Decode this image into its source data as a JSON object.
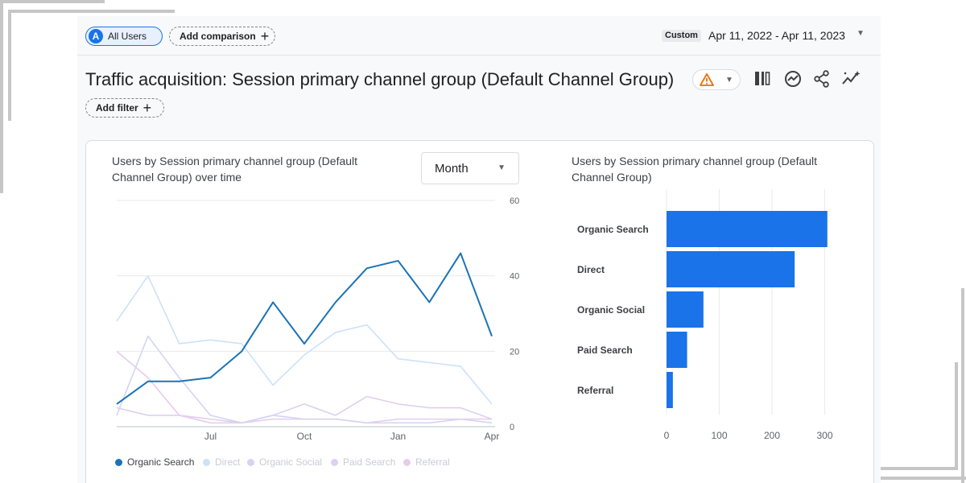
{
  "topbar": {
    "users_chip": {
      "avatar": "A",
      "label": "All Users"
    },
    "add_comparison_label": "Add comparison",
    "custom_badge": "Custom",
    "date_range": "Apr 11, 2022 - Apr 11, 2023"
  },
  "title": "Traffic acquisition: Session primary channel group (Default Channel Group)",
  "add_filter_label": "Add filter",
  "line_card": {
    "title_line1": "Users by Session primary channel group (Default",
    "title_line2": "Channel Group) over time",
    "granularity": "Month"
  },
  "bar_card": {
    "title_line1": "Users by Session primary channel group (Default",
    "title_line2": "Channel Group)"
  },
  "icons": [
    "warning-icon",
    "compare-columns-icon",
    "insights-icon",
    "share-icon",
    "anomaly-icon"
  ],
  "colors": {
    "accent": "#1a73e8",
    "bar": "#1a73e8",
    "warning": "#e8710a"
  },
  "chart_data": [
    {
      "type": "line",
      "x_ticks": [
        "Jul",
        "Oct",
        "Jan",
        "Apr"
      ],
      "ylim": [
        0,
        60
      ],
      "y_ticks": [
        0,
        20,
        40,
        60
      ],
      "legend_position": "bottom-left",
      "series": [
        {
          "name": "Organic Search",
          "color": "#1a73b8",
          "values": [
            6,
            12,
            12,
            13,
            20,
            33,
            22,
            33,
            42,
            44,
            33,
            46,
            24
          ]
        },
        {
          "name": "Direct",
          "color": "#cde1f7",
          "values": [
            28,
            40,
            22,
            23,
            22,
            11,
            19,
            25,
            27,
            18,
            17,
            16,
            6
          ]
        },
        {
          "name": "Organic Social",
          "color": "#d4d4f4",
          "values": [
            3,
            24,
            13,
            3,
            1,
            3,
            2,
            2,
            1,
            1,
            1,
            2,
            1
          ]
        },
        {
          "name": "Paid Search",
          "color": "#ddd0f0",
          "values": [
            5,
            3,
            3,
            1,
            1,
            3,
            6,
            3,
            8,
            6,
            5,
            5,
            2
          ]
        },
        {
          "name": "Referral",
          "color": "#e6cceb",
          "values": [
            20,
            13,
            3,
            2,
            1,
            2,
            2,
            2,
            1,
            2,
            2,
            2,
            2
          ]
        }
      ]
    },
    {
      "type": "bar",
      "orientation": "horizontal",
      "categories": [
        "Organic Search",
        "Direct",
        "Organic Social",
        "Paid Search",
        "Referral"
      ],
      "values": [
        305,
        243,
        70,
        39,
        12
      ],
      "x_ticks": [
        0,
        100,
        200,
        300
      ],
      "xlim": [
        0,
        320
      ]
    }
  ]
}
